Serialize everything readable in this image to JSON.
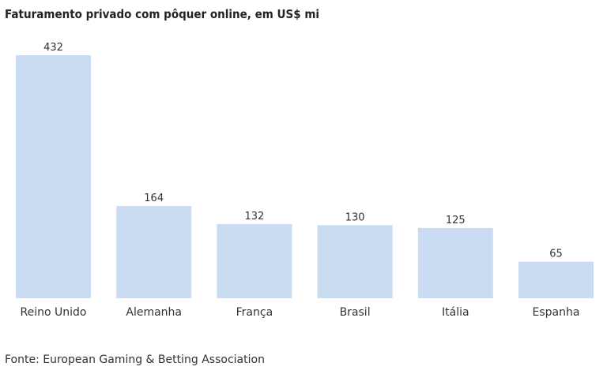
{
  "chart_data": {
    "type": "bar",
    "title": "Faturamento privado com pôquer online, em US$ mi",
    "categories": [
      "Reino Unido",
      "Alemanha",
      "França",
      "Brasil",
      "Itália",
      "Espanha"
    ],
    "values": [
      432,
      164,
      132,
      130,
      125,
      65
    ],
    "data_labels": [
      "432",
      "164",
      "132",
      "130",
      "125",
      "65"
    ],
    "xlabel": "",
    "ylabel": "",
    "ylim": [
      0,
      432
    ],
    "grid": false,
    "legend": "none",
    "bar_color": "#c9dcf2"
  },
  "footer": {
    "source": "Fonte: European Gaming & Betting Association"
  }
}
